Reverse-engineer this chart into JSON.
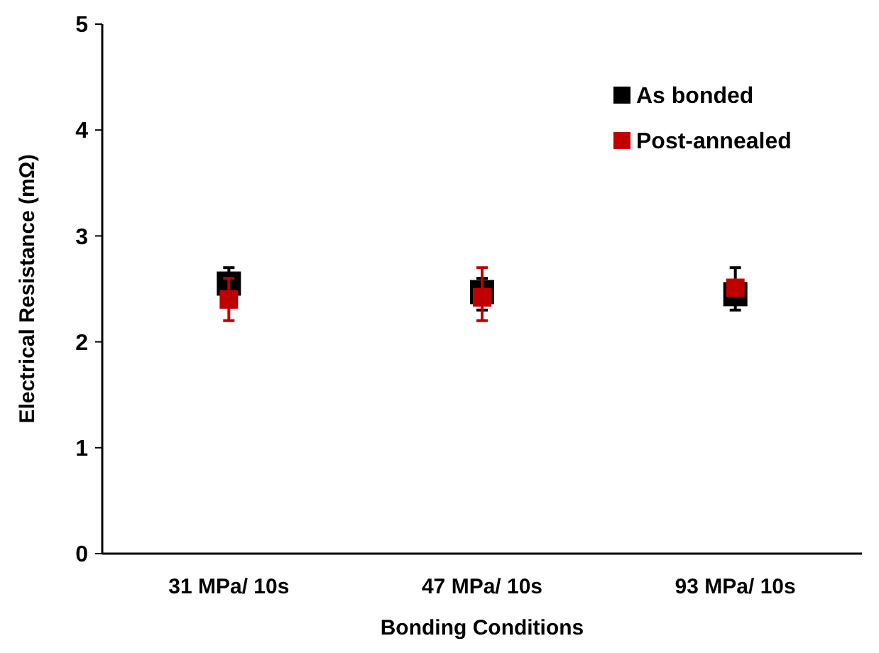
{
  "chart_data": {
    "type": "scatter",
    "xlabel": "Bonding Conditions",
    "ylabel": "Electrical Resistance (mΩ)",
    "categories": [
      "31 MPa/ 10s",
      "47 MPa/ 10s",
      "93 MPa/ 10s"
    ],
    "series": [
      {
        "name": "As bonded",
        "color": "#000000",
        "values": [
          2.55,
          2.47,
          2.45
        ],
        "errors": [
          0.15,
          [
            2.3,
            2.6
          ],
          [
            2.3,
            2.7
          ]
        ]
      },
      {
        "name": "Post-annealed",
        "color": "#c00000",
        "values": [
          2.4,
          2.42,
          2.51
        ],
        "errors": [
          0.2,
          [
            2.2,
            2.7
          ],
          null
        ]
      }
    ],
    "ylim": [
      0,
      5
    ],
    "yticks": [
      0,
      1,
      2,
      3,
      4,
      5
    ],
    "grid": false,
    "legend": "top right",
    "marker": "square"
  }
}
